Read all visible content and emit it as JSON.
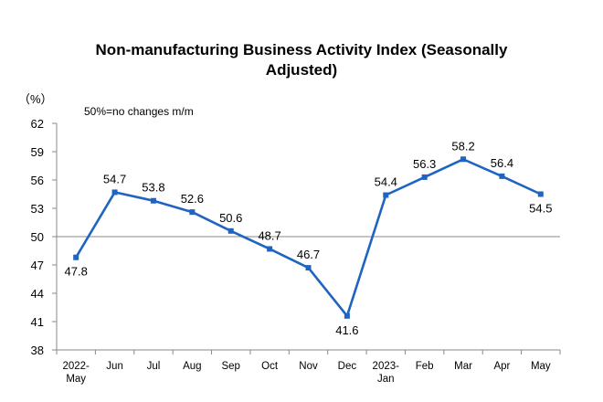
{
  "chart_data": {
    "type": "line",
    "title_line1": "Non-manufacturing Business Activity Index (Seasonally",
    "title_line2": "Adjusted)",
    "unit_label": "（%）",
    "annotation": "50%=no changes m/m",
    "categories": [
      [
        "2022-",
        "May"
      ],
      [
        "Jun"
      ],
      [
        "Jul"
      ],
      [
        "Aug"
      ],
      [
        "Sep"
      ],
      [
        "Oct"
      ],
      [
        "Nov"
      ],
      [
        "Dec"
      ],
      [
        "2023-",
        "Jan"
      ],
      [
        "Feb"
      ],
      [
        "Mar"
      ],
      [
        "Apr"
      ],
      [
        "May"
      ]
    ],
    "values": [
      47.8,
      54.7,
      53.8,
      52.6,
      50.6,
      48.7,
      46.7,
      41.6,
      54.4,
      56.3,
      58.2,
      56.4,
      54.5
    ],
    "value_labels": [
      "47.8",
      "54.7",
      "53.8",
      "52.6",
      "50.6",
      "48.7",
      "46.7",
      "41.6",
      "54.4",
      "56.3",
      "58.2",
      "56.4",
      "54.5"
    ],
    "yticks": [
      38,
      41,
      44,
      47,
      50,
      53,
      56,
      59,
      62
    ],
    "ylim": [
      38,
      62
    ],
    "reference_line": 50,
    "line_color": "#1f64c0",
    "axis_color": "#888888"
  }
}
